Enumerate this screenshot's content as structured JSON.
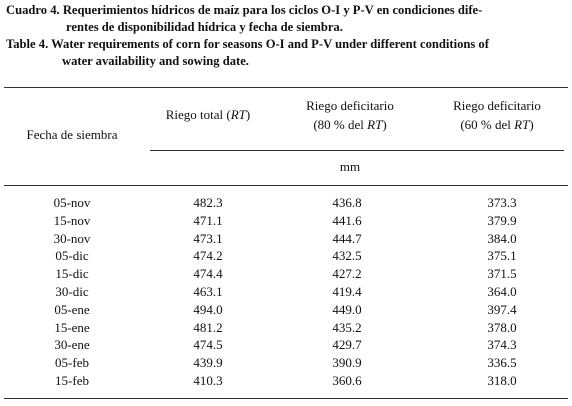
{
  "caption": {
    "es": {
      "label": "Cuadro 4.",
      "lines": [
        "Requerimientos hídricos de maíz para los ciclos O-I y P-V en condiciones dife-",
        "rentes de disponibilidad hídrica y fecha de siembra."
      ]
    },
    "en": {
      "label": "Table 4.",
      "lines": [
        "Water requirements of corn for seasons O-I and P-V under different conditions of",
        "water availability and sowing date."
      ]
    }
  },
  "table": {
    "row_header": "Fecha de siembra",
    "columns": [
      {
        "lines": [
          [
            "Riego total (",
            "RT",
            ")"
          ]
        ]
      },
      {
        "lines": [
          [
            "Riego deficitario"
          ],
          [
            "(80 % del ",
            "RT",
            ")"
          ]
        ]
      },
      {
        "lines": [
          [
            "Riego deficitario"
          ],
          [
            "(60 % del ",
            "RT",
            ")"
          ]
        ]
      }
    ],
    "unit": "mm",
    "rows": [
      [
        "05-nov",
        "482.3",
        "436.8",
        "373.3"
      ],
      [
        "15-nov",
        "471.1",
        "441.6",
        "379.9"
      ],
      [
        "30-nov",
        "473.1",
        "444.7",
        "384.0"
      ],
      [
        "05-dic",
        "474.2",
        "432.5",
        "375.1"
      ],
      [
        "15-dic",
        "474.4",
        "427.2",
        "371.5"
      ],
      [
        "30-dic",
        "463.1",
        "419.4",
        "364.0"
      ],
      [
        "05-ene",
        "494.0",
        "449.0",
        "397.4"
      ],
      [
        "15-ene",
        "481.2",
        "435.2",
        "378.0"
      ],
      [
        "30-ene",
        "474.5",
        "429.7",
        "374.3"
      ],
      [
        "05-feb",
        "439.9",
        "390.9",
        "336.5"
      ],
      [
        "15-feb",
        "410.3",
        "360.6",
        "318.0"
      ]
    ]
  }
}
